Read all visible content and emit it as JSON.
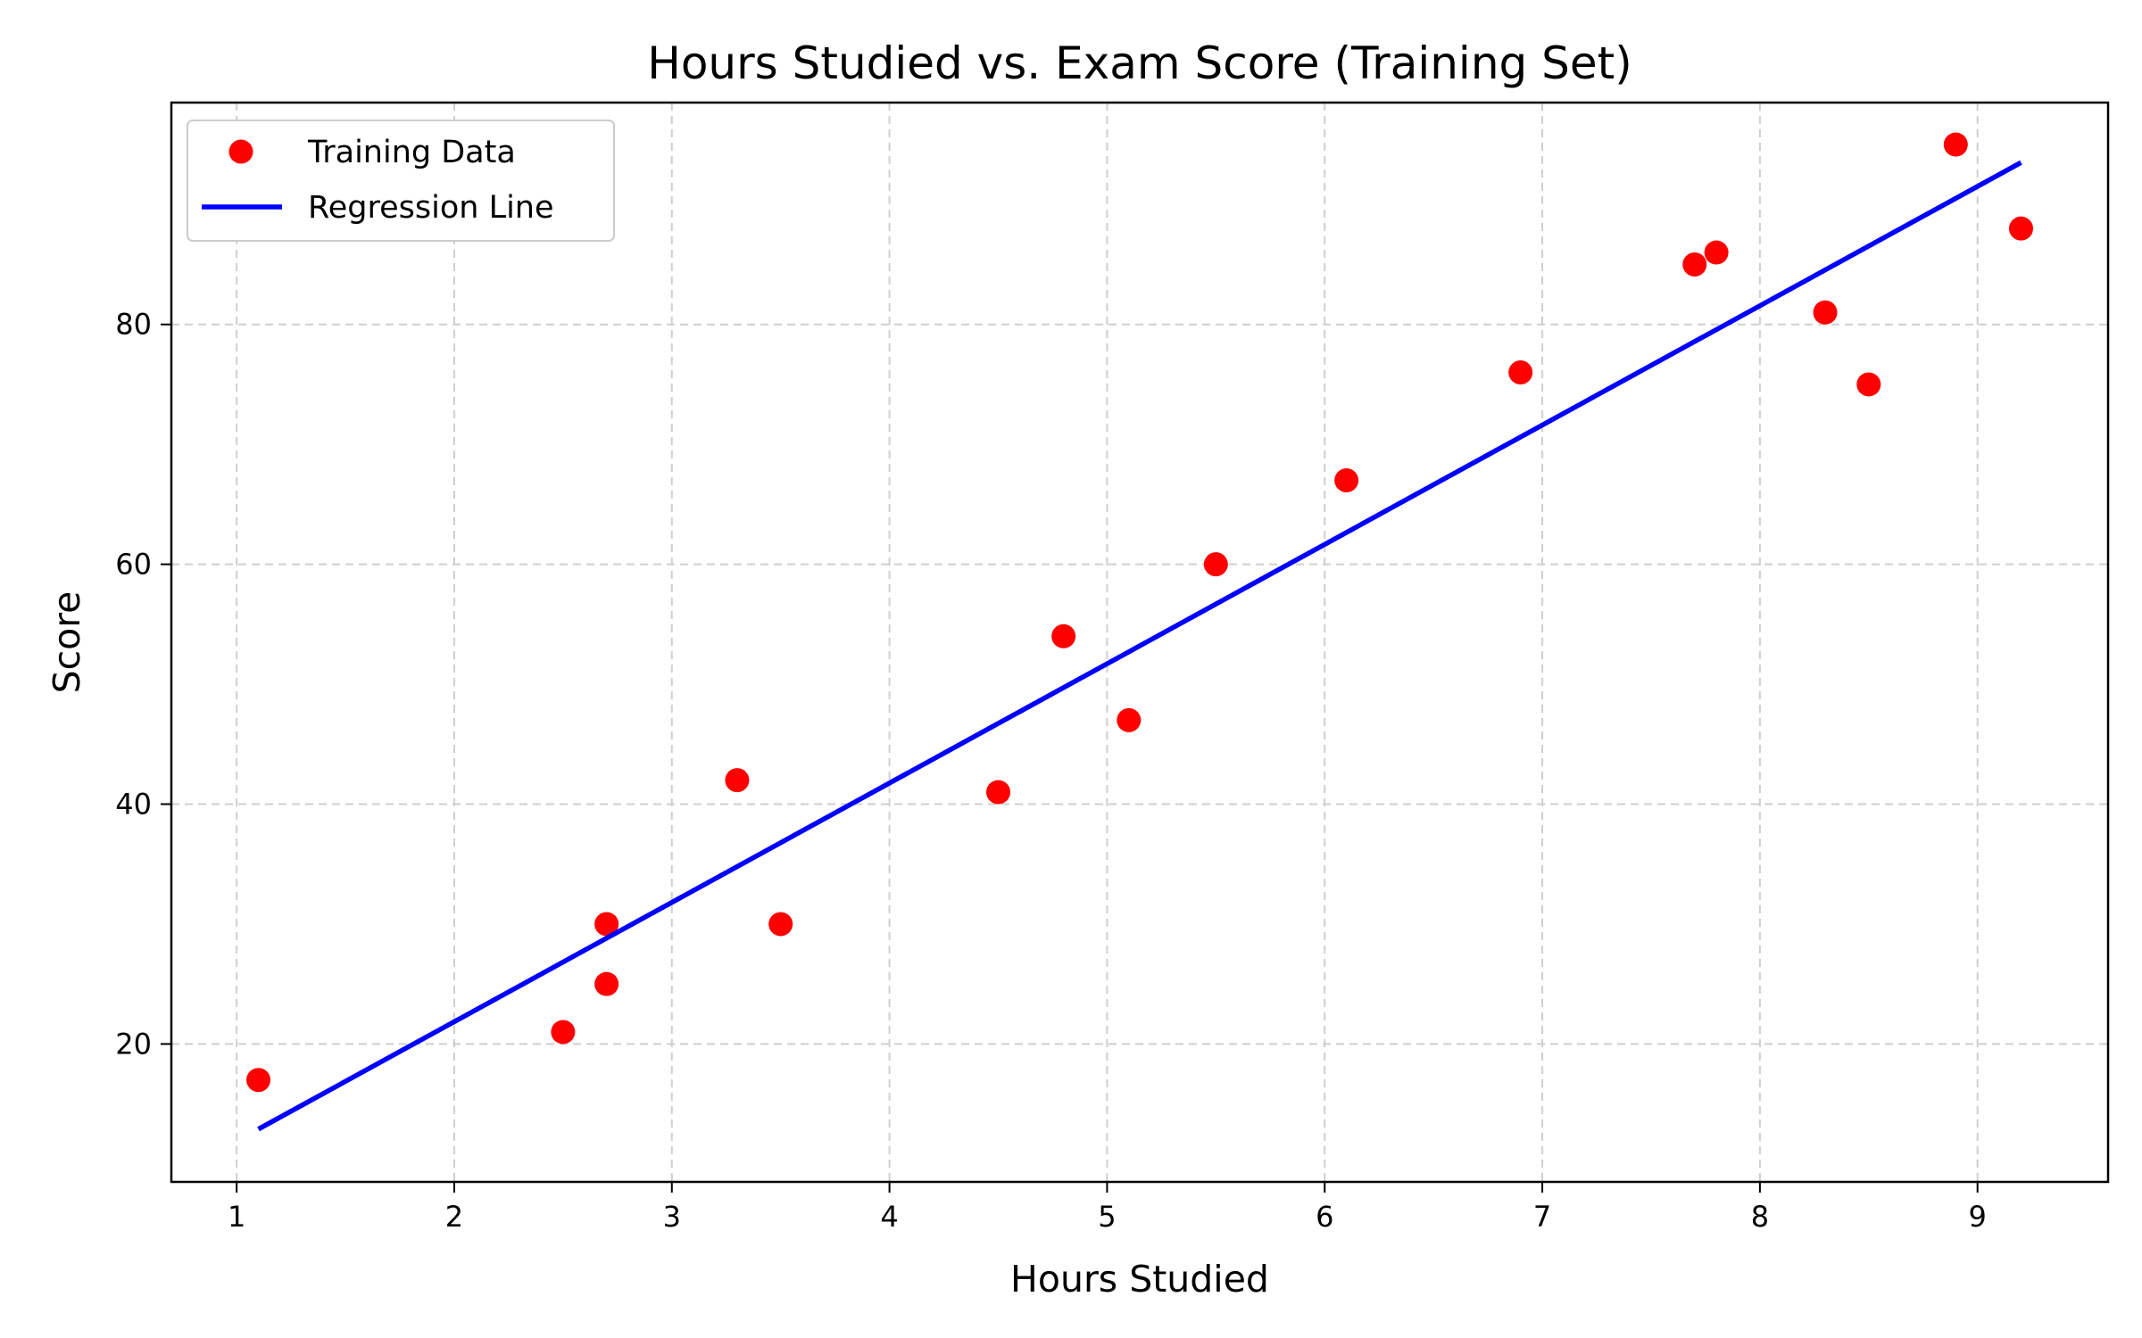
{
  "chart_data": {
    "type": "scatter",
    "title": "Hours Studied vs. Exam Score (Training Set)",
    "xlabel": "Hours Studied",
    "ylabel": "Score",
    "xlim": [
      0.7,
      9.6
    ],
    "ylim": [
      8.5,
      98.5
    ],
    "xticks": [
      1,
      2,
      3,
      4,
      5,
      6,
      7,
      8,
      9
    ],
    "yticks": [
      20,
      40,
      60,
      80
    ],
    "grid": true,
    "legend_position": "top-left",
    "series": [
      {
        "name": "Training Data",
        "kind": "scatter",
        "color": "#ff0000",
        "points": [
          {
            "x": 1.1,
            "y": 17
          },
          {
            "x": 2.5,
            "y": 21
          },
          {
            "x": 2.7,
            "y": 25
          },
          {
            "x": 2.7,
            "y": 30
          },
          {
            "x": 3.3,
            "y": 42
          },
          {
            "x": 3.5,
            "y": 30
          },
          {
            "x": 4.5,
            "y": 41
          },
          {
            "x": 4.8,
            "y": 54
          },
          {
            "x": 5.1,
            "y": 47
          },
          {
            "x": 5.5,
            "y": 60
          },
          {
            "x": 6.1,
            "y": 67
          },
          {
            "x": 6.9,
            "y": 76
          },
          {
            "x": 7.7,
            "y": 85
          },
          {
            "x": 7.8,
            "y": 86
          },
          {
            "x": 8.3,
            "y": 81
          },
          {
            "x": 8.5,
            "y": 75
          },
          {
            "x": 8.9,
            "y": 95
          },
          {
            "x": 9.2,
            "y": 88
          }
        ]
      },
      {
        "name": "Regression Line",
        "kind": "line",
        "color": "#0000ff",
        "points": [
          {
            "x": 1.1,
            "y": 12.9
          },
          {
            "x": 9.2,
            "y": 93.5
          }
        ]
      }
    ]
  }
}
